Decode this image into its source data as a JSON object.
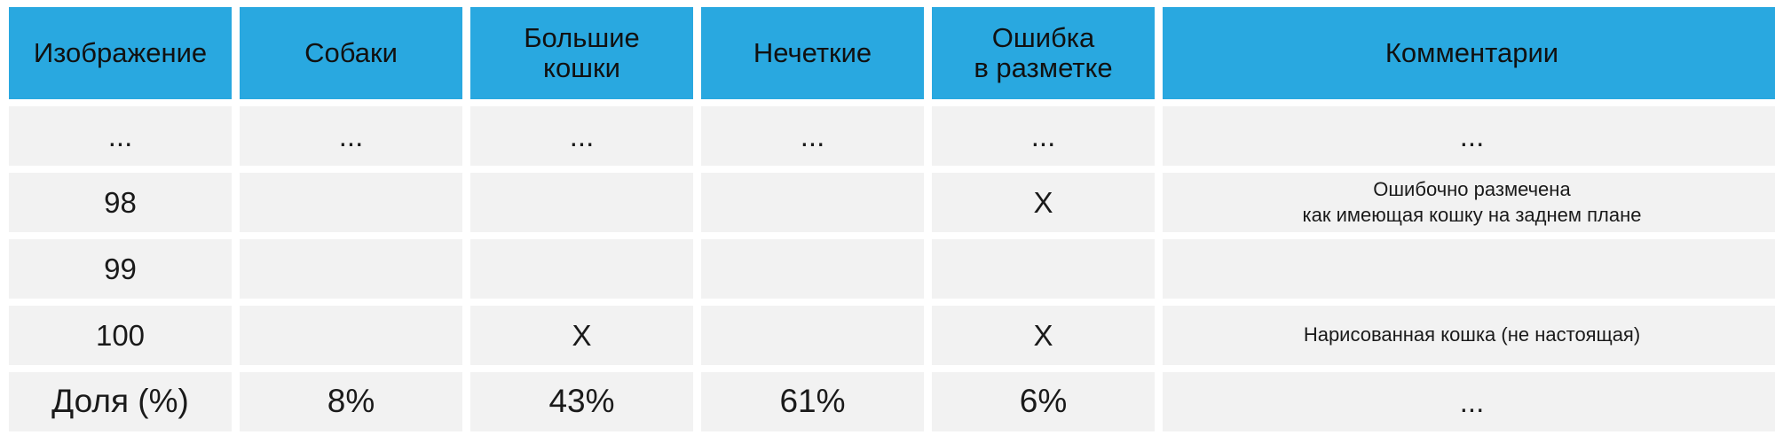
{
  "headers": [
    {
      "lines": [
        "Изображение"
      ]
    },
    {
      "lines": [
        "Собаки"
      ]
    },
    {
      "lines": [
        "Большие",
        "кошки"
      ]
    },
    {
      "lines": [
        "Нечеткие"
      ]
    },
    {
      "lines": [
        "Ошибка",
        "в разметке"
      ]
    },
    {
      "lines": [
        "Комментарии"
      ]
    }
  ],
  "rows": [
    {
      "image": "...",
      "dogs": "...",
      "big_cats": "...",
      "blurry": "...",
      "label_error": "...",
      "comment": [
        "..."
      ]
    },
    {
      "image": "98",
      "dogs": "",
      "big_cats": "",
      "blurry": "",
      "label_error": "X",
      "comment": [
        "Ошибочно размечена",
        "как имеющая кошку на заднем плане"
      ]
    },
    {
      "image": "99",
      "dogs": "",
      "big_cats": "",
      "blurry": "",
      "label_error": "",
      "comment": [
        ""
      ]
    },
    {
      "image": "100",
      "dogs": "",
      "big_cats": "X",
      "blurry": "",
      "label_error": "X",
      "comment": [
        "Нарисованная кошка (не настоящая)"
      ]
    }
  ],
  "totals": {
    "label": "Доля (%)",
    "dogs": "8%",
    "big_cats": "43%",
    "blurry": "61%",
    "label_error": "6%",
    "comment": "..."
  }
}
